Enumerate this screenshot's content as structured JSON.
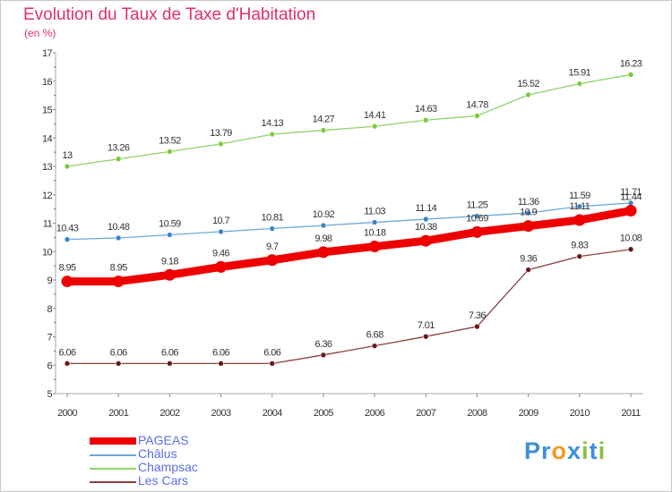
{
  "header": {
    "title": "Evolution du Taux de Taxe d'Habitation",
    "subtitle": "(en %)"
  },
  "chart_data": {
    "type": "line",
    "x": [
      "2000",
      "2001",
      "2002",
      "2003",
      "2004",
      "2005",
      "2006",
      "2007",
      "2008",
      "2009",
      "2010",
      "2011"
    ],
    "ylim": [
      5,
      17
    ],
    "yticks": [
      "5",
      "6",
      "7",
      "8",
      "9",
      "10",
      "11",
      "12",
      "13",
      "14",
      "15",
      "16",
      "17"
    ],
    "grid": false,
    "legend_position": "bottom-left",
    "series": [
      {
        "name": "Champsac",
        "color": "#8fd16a",
        "marker_color": "#7acc3a",
        "values": [
          13,
          13.26,
          13.52,
          13.79,
          14.13,
          14.27,
          14.41,
          14.63,
          14.78,
          15.52,
          15.91,
          16.23
        ],
        "labels": [
          "13",
          "13.26",
          "13.52",
          "13.79",
          "14.13",
          "14.27",
          "14.41",
          "14.63",
          "14.78",
          "15.52",
          "15.91",
          "16.23"
        ]
      },
      {
        "name": "Châlus",
        "color": "#6fa8d6",
        "marker_color": "#3a84c8",
        "values": [
          10.43,
          10.48,
          10.59,
          10.7,
          10.81,
          10.92,
          11.03,
          11.14,
          11.25,
          11.36,
          11.59,
          11.71
        ],
        "labels": [
          "10.43",
          "10.48",
          "10.59",
          "10.7",
          "10.81",
          "10.92",
          "11.03",
          "11.14",
          "11.25",
          "11.36",
          "11.59",
          "11.71"
        ]
      },
      {
        "name": "PAGEAS",
        "color": "#ee0000",
        "marker_color": "#ee0000",
        "values": [
          8.95,
          8.95,
          9.18,
          9.46,
          9.7,
          9.98,
          10.18,
          10.38,
          10.69,
          10.9,
          11.11,
          11.44
        ],
        "labels": [
          "8.95",
          "8.95",
          "9.18",
          "9.46",
          "9.7",
          "9.98",
          "10.18",
          "10.38",
          "10.69",
          "10.9",
          "11.11",
          "11.44"
        ]
      },
      {
        "name": "Les Cars",
        "color": "#8a4040",
        "marker_color": "#6a1818",
        "values": [
          6.06,
          6.06,
          6.06,
          6.06,
          6.06,
          6.36,
          6.68,
          7.01,
          7.36,
          9.36,
          9.83,
          10.08
        ],
        "labels": [
          "6.06",
          "6.06",
          "6.06",
          "6.06",
          "6.06",
          "6.36",
          "6.68",
          "7.01",
          "7.36",
          "9.36",
          "9.83",
          "10.08"
        ]
      }
    ]
  },
  "legend": {
    "items": [
      {
        "label": "PAGEAS",
        "color": "#ee0000"
      },
      {
        "label": "Châlus",
        "color": "#6fa8d6"
      },
      {
        "label": "Champsac",
        "color": "#8fd16a"
      },
      {
        "label": "Les Cars",
        "color": "#8a4040"
      }
    ]
  },
  "logo": {
    "letters": [
      "P",
      "r",
      "o",
      "x",
      "i",
      "t",
      "i"
    ],
    "colors": [
      "#3f8fd8",
      "#3f8fd8",
      "#f29a1f",
      "#3f8fd8",
      "#88c040",
      "#3f8fd8",
      "#88c040"
    ]
  }
}
